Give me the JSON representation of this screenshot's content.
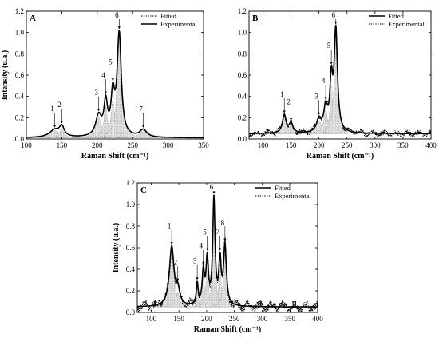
{
  "chart_data": [
    {
      "type": "line",
      "panel": "A",
      "xlabel": "Raman Shift (cm⁻¹)",
      "ylabel": "Intensity (u.a.)",
      "xlim": [
        100,
        350
      ],
      "ylim": [
        0,
        1.2
      ],
      "xticks": [
        100,
        150,
        200,
        250,
        300,
        350
      ],
      "yticks": [
        0.0,
        0.2,
        0.4,
        0.6,
        0.8,
        1.0,
        1.2
      ],
      "legend_position": "top-right",
      "series": [
        {
          "name": "Fitted",
          "style": "dotted"
        },
        {
          "name": "Experimental",
          "style": "solid"
        }
      ],
      "peaks": [
        {
          "label": "1",
          "x": 140,
          "y": 0.07,
          "w": 9
        },
        {
          "label": "2",
          "x": 150,
          "y": 0.09,
          "w": 4
        },
        {
          "label": "3",
          "x": 202,
          "y": 0.19,
          "w": 5
        },
        {
          "label": "4",
          "x": 212,
          "y": 0.3,
          "w": 3
        },
        {
          "label": "5",
          "x": 222,
          "y": 0.36,
          "w": 3
        },
        {
          "label": "6",
          "x": 231,
          "y": 0.96,
          "w": 3.5
        },
        {
          "label": "7",
          "x": 265,
          "y": 0.07,
          "w": 6
        }
      ],
      "baseline": 0.01,
      "noise": 0
    },
    {
      "type": "line",
      "panel": "B",
      "xlabel": "Raman Shift (cm⁻¹)",
      "ylabel": "",
      "xlim": [
        75,
        400
      ],
      "ylim": [
        0,
        1.2
      ],
      "xticks": [
        100,
        150,
        200,
        250,
        300,
        350,
        400
      ],
      "yticks": [
        0.0,
        0.2,
        0.4,
        0.6,
        0.8,
        1.0,
        1.2
      ],
      "legend_position": "top-right",
      "series": [
        {
          "name": "Fitted",
          "style": "solid"
        },
        {
          "name": "Experimental",
          "style": "dotted"
        }
      ],
      "peaks": [
        {
          "label": "1",
          "x": 138,
          "y": 0.17,
          "w": 4
        },
        {
          "label": "2",
          "x": 150,
          "y": 0.09,
          "w": 4
        },
        {
          "label": "3",
          "x": 200,
          "y": 0.12,
          "w": 5
        },
        {
          "label": "4",
          "x": 212,
          "y": 0.22,
          "w": 4
        },
        {
          "label": "5",
          "x": 222,
          "y": 0.45,
          "w": 3
        },
        {
          "label": "6",
          "x": 230,
          "y": 0.95,
          "w": 3.5
        }
      ],
      "baseline": 0.05,
      "noise": 0.015
    },
    {
      "type": "line",
      "panel": "C",
      "xlabel": "Raman Shift (cm⁻¹)",
      "ylabel": "Intensity (u.a.)",
      "xlim": [
        75,
        400
      ],
      "ylim": [
        0,
        1.2
      ],
      "xticks": [
        100,
        150,
        200,
        250,
        300,
        350,
        400
      ],
      "yticks": [
        0.0,
        0.2,
        0.4,
        0.6,
        0.8,
        1.0,
        1.2
      ],
      "legend_position": "top-right",
      "series": [
        {
          "name": "Fitted",
          "style": "solid"
        },
        {
          "name": "Experimental",
          "style": "dotted"
        }
      ],
      "peaks": [
        {
          "label": "1",
          "x": 137,
          "y": 0.55,
          "w": 5
        },
        {
          "label": "2",
          "x": 148,
          "y": 0.13,
          "w": 4
        },
        {
          "label": "3",
          "x": 183,
          "y": 0.2,
          "w": 2
        },
        {
          "label": "4",
          "x": 194,
          "y": 0.3,
          "w": 2.5
        },
        {
          "label": "5",
          "x": 201,
          "y": 0.42,
          "w": 2.5
        },
        {
          "label": "6",
          "x": 213,
          "y": 0.98,
          "w": 2.5
        },
        {
          "label": "7",
          "x": 224,
          "y": 0.4,
          "w": 2.5
        },
        {
          "label": "8",
          "x": 233,
          "y": 0.55,
          "w": 3
        }
      ],
      "baseline": 0.05,
      "noise": 0.025
    }
  ]
}
